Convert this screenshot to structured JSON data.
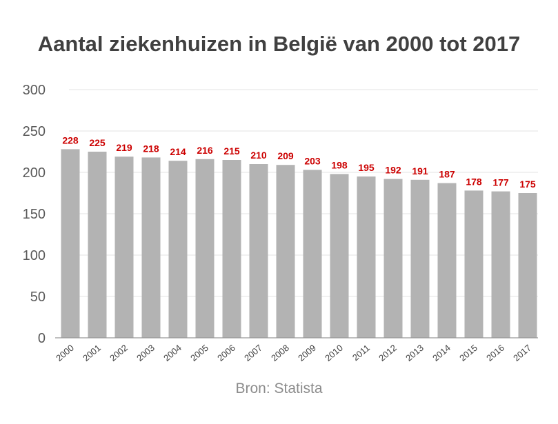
{
  "title": "Aantal ziekenhuizen in België van 2000 tot 2017",
  "source": "Bron: Statista",
  "colors": {
    "bar": "#b3b3b3",
    "label": "#cc0000",
    "grid": "#e3e3e3",
    "axis": "#999999"
  },
  "chart_data": {
    "type": "bar",
    "title": "Aantal ziekenhuizen in België van 2000 tot 2017",
    "xlabel": "",
    "ylabel": "",
    "ylim": [
      0,
      300
    ],
    "yticks": [
      0,
      50,
      100,
      150,
      200,
      250,
      300
    ],
    "grid": true,
    "categories": [
      "2000",
      "2001",
      "2002",
      "2003",
      "2004",
      "2005",
      "2006",
      "2007",
      "2008",
      "2009",
      "2010",
      "2011",
      "2012",
      "2013",
      "2014",
      "2015",
      "2016",
      "2017"
    ],
    "values": [
      228,
      225,
      219,
      218,
      214,
      216,
      215,
      210,
      209,
      203,
      198,
      195,
      192,
      191,
      187,
      178,
      177,
      175
    ]
  }
}
